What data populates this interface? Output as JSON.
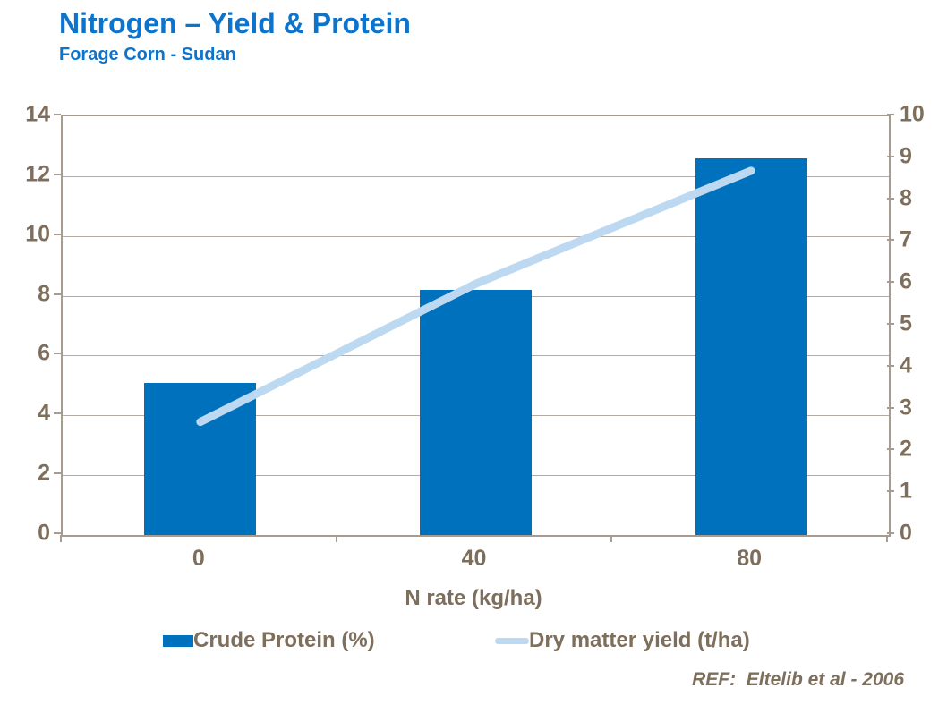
{
  "header": {
    "title": "Nitrogen – Yield & Protein",
    "subtitle": "Forage Corn - Sudan"
  },
  "footer": {
    "ref": "REF:  Eltelib et al - 2006"
  },
  "colors": {
    "title_blue": "#0d74ce",
    "bar_blue": "#0071bd",
    "line_light_blue": "#bdd9f2",
    "axis_text_brown": "#7e6e5c",
    "plot_border": "#a89c90",
    "gridline": "#b3aaa1"
  },
  "chart_data": {
    "type": "bar+line combo",
    "categories": [
      "0",
      "40",
      "80"
    ],
    "series": [
      {
        "name": "Crude Protein (%)",
        "type": "bar",
        "axis": "left",
        "values": [
          5.1,
          8.2,
          12.6
        ]
      },
      {
        "name": "Dry matter yield (t/ha)",
        "type": "line",
        "axis": "right",
        "values": [
          2.7,
          6.0,
          8.7
        ]
      }
    ],
    "xlabel": "N rate (kg/ha)",
    "left_axis": {
      "min": 0,
      "max": 14,
      "step": 2,
      "ticks": [
        "0",
        "2",
        "4",
        "6",
        "8",
        "10",
        "12",
        "14"
      ]
    },
    "right_axis": {
      "min": 0,
      "max": 10,
      "step": 1,
      "ticks": [
        "0",
        "1",
        "2",
        "3",
        "4",
        "5",
        "6",
        "7",
        "8",
        "9",
        "10"
      ]
    },
    "grid": true,
    "legend_position": "bottom"
  }
}
